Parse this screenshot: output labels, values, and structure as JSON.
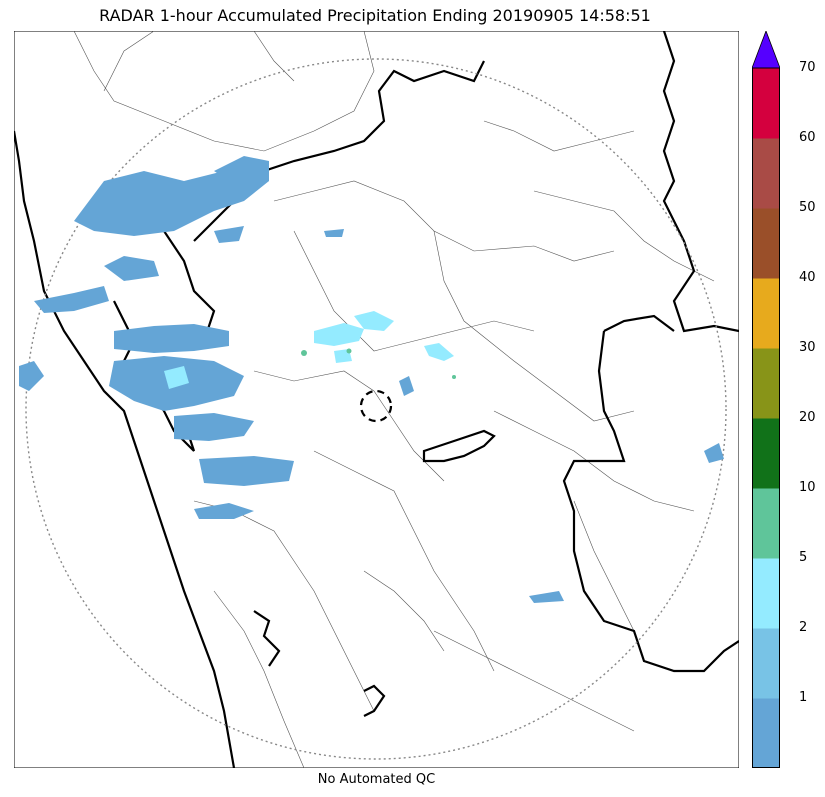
{
  "title": "RADAR 1-hour Accumulated Precipitation Ending 20190905 14:58:51",
  "footer": "No Automated QC",
  "colorbar": {
    "ticks": [
      "1",
      "2",
      "5",
      "10",
      "20",
      "30",
      "40",
      "50",
      "60",
      "70"
    ],
    "colors": [
      "#64a5d6",
      "#78c3e6",
      "#94ebff",
      "#5fc59a",
      "#117219",
      "#889418",
      "#e7aa1d",
      "#9a4f29",
      "#a94b46",
      "#d4003e"
    ],
    "extend_color": "#5500ff"
  },
  "map": {
    "features": [
      "state-boundaries",
      "district-boundaries",
      "coastline",
      "radar-range-ring",
      "radar-site-marker"
    ],
    "precip_color_dominant": "#64a5d6"
  }
}
